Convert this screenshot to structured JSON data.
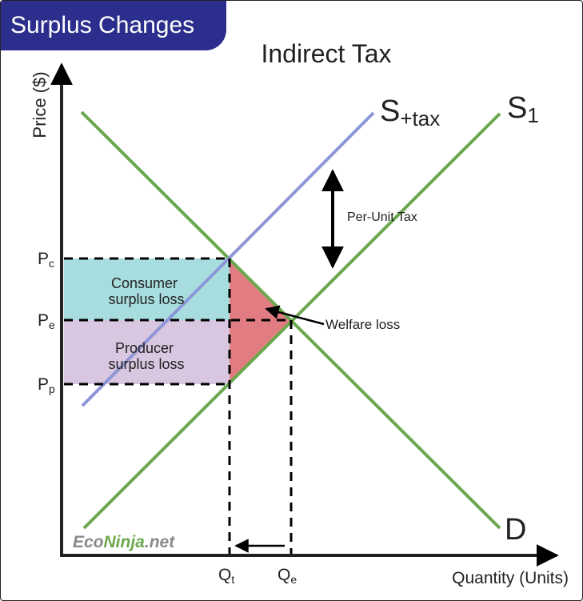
{
  "badge": "Surplus Changes",
  "title": "Indirect Tax",
  "axis": {
    "y_label": "Price ($)",
    "x_label": "Quantity (Units)"
  },
  "curves": {
    "supply_tax": {
      "main": "S",
      "sub": "+tax"
    },
    "supply": {
      "main": "S",
      "sub": "1"
    },
    "demand": {
      "main": "D"
    }
  },
  "ticks": {
    "y": [
      {
        "main": "P",
        "sub": "c"
      },
      {
        "main": "P",
        "sub": "e"
      },
      {
        "main": "P",
        "sub": "p"
      }
    ],
    "x": [
      {
        "main": "Q",
        "sub": "t"
      },
      {
        "main": "Q",
        "sub": "e"
      }
    ]
  },
  "areas": {
    "consumer": [
      "Consumer",
      "surplus loss"
    ],
    "producer": [
      "Producer",
      "surplus loss"
    ]
  },
  "annotations": {
    "per_unit_tax": "Per-Unit Tax",
    "welfare_loss": "Welfare loss"
  },
  "watermark": {
    "part1": "Eco",
    "part2": "Ninja",
    "part3": ".net"
  },
  "colors": {
    "badge_bg": "#2b2e8c",
    "supply_demand": "#6aa84f",
    "supply_tax": "#8e97d6",
    "consumer_area": "#a8dde0",
    "producer_area": "#d9c6e0",
    "welfare_area": "#e07c82"
  }
}
